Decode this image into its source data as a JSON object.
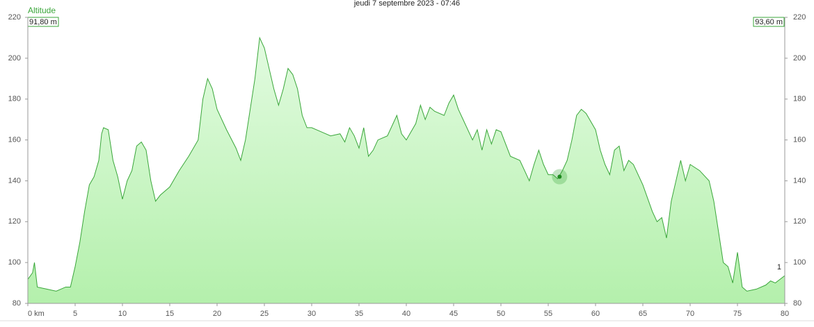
{
  "chart_data": {
    "type": "area",
    "title": "jeudi 7 septembre 2023 - 07:46",
    "y_label": "Altitude",
    "start_label": "91,80 m",
    "end_label": "93,60 m",
    "marker_label": "1",
    "line_color": "#3aa63a",
    "fill_top": "#e2fbe0",
    "fill_bottom": "#b4f0ac",
    "xlim": [
      0,
      80
    ],
    "ylim": [
      80,
      220
    ],
    "xticks": [
      {
        "value": 0,
        "label": "0 km"
      },
      5,
      10,
      15,
      20,
      25,
      30,
      35,
      40,
      45,
      50,
      55,
      60,
      65,
      70,
      75,
      80
    ],
    "yticks": [
      80,
      100,
      120,
      140,
      160,
      180,
      200,
      220
    ],
    "cursor": {
      "x": 56.2,
      "y": 142
    },
    "x": [
      0,
      0.5,
      0.7,
      1,
      2,
      3,
      4,
      4.5,
      5,
      5.5,
      6,
      6.5,
      7,
      7.5,
      7.8,
      8,
      8.5,
      9,
      9.5,
      10,
      10.5,
      11,
      11.5,
      12,
      12.5,
      13,
      13.5,
      14,
      15,
      16,
      17,
      18,
      18.5,
      19,
      19.5,
      20,
      21,
      22,
      22.5,
      23,
      23.5,
      24,
      24.5,
      25,
      25.5,
      26,
      26.5,
      27,
      27.5,
      28,
      28.5,
      29,
      29.5,
      30,
      31,
      32,
      33,
      33.5,
      34,
      34.5,
      35,
      35.5,
      36,
      36.5,
      37,
      38,
      39,
      39.5,
      40,
      41,
      41.5,
      42,
      42.5,
      43,
      44,
      44.5,
      45,
      45.5,
      46,
      47,
      47.5,
      48,
      48.5,
      49,
      49.5,
      50,
      51,
      52,
      52.5,
      53,
      53.5,
      54,
      54.5,
      55,
      55.5,
      56,
      56.5,
      57,
      57.5,
      58,
      58.5,
      59,
      60,
      60.5,
      61,
      61.5,
      62,
      62.5,
      63,
      63.5,
      64,
      65,
      66,
      66.5,
      67,
      67.5,
      68,
      68.5,
      69,
      69.5,
      70,
      71,
      72,
      72.5,
      73,
      73.5,
      74,
      74.5,
      75,
      75.5,
      76,
      77,
      78,
      78.5,
      79,
      80
    ],
    "values": [
      91.8,
      95,
      100,
      88,
      87,
      86,
      88,
      88,
      98,
      110,
      125,
      138,
      142,
      150,
      163,
      166,
      165,
      150,
      142,
      131,
      140,
      145,
      157,
      159,
      155,
      140,
      130,
      133,
      137,
      145,
      152,
      160,
      180,
      190,
      185,
      175,
      165,
      156,
      150,
      160,
      175,
      190,
      210,
      205,
      195,
      185,
      177,
      185,
      195,
      192,
      185,
      172,
      166,
      166,
      164,
      162,
      163,
      159,
      166,
      162,
      156,
      166,
      152,
      155,
      160,
      162,
      172,
      163,
      160,
      168,
      177,
      170,
      176,
      174,
      172,
      178,
      182,
      175,
      170,
      160,
      165,
      155,
      165,
      158,
      165,
      164,
      152,
      150,
      145,
      140,
      148,
      155,
      148,
      143,
      143,
      141,
      145,
      150,
      160,
      172,
      175,
      173,
      165,
      155,
      148,
      143,
      155,
      157,
      145,
      150,
      148,
      138,
      125,
      120,
      122,
      112,
      130,
      140,
      150,
      140,
      148,
      145,
      140,
      130,
      115,
      100,
      98,
      90,
      105,
      88,
      86,
      87,
      89,
      91,
      90,
      93.6
    ]
  }
}
